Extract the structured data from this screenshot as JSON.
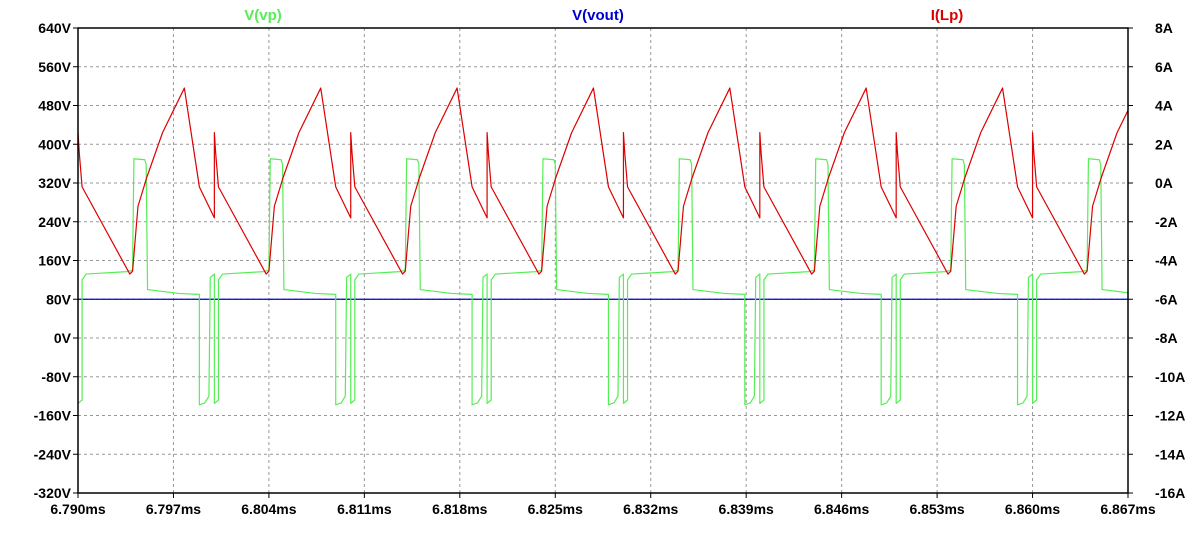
{
  "chart_data": {
    "type": "line",
    "title": "",
    "legend": [
      "V(vp)",
      "V(vout)",
      "I(Lp)"
    ],
    "x": {
      "unit": "ms",
      "range": [
        6.79,
        6.867
      ],
      "ticks": [
        6.79,
        6.797,
        6.804,
        6.811,
        6.818,
        6.825,
        6.832,
        6.839,
        6.846,
        6.853,
        6.86,
        6.867
      ],
      "tick_labels": [
        "6.790ms",
        "6.797ms",
        "6.804ms",
        "6.811ms",
        "6.818ms",
        "6.825ms",
        "6.832ms",
        "6.839ms",
        "6.846ms",
        "6.853ms",
        "6.860ms",
        "6.867ms"
      ]
    },
    "y_left": {
      "unit": "V",
      "range": [
        -320,
        640
      ],
      "ticks": [
        640,
        560,
        480,
        400,
        320,
        240,
        160,
        80,
        0,
        -80,
        -160,
        -240,
        -320
      ],
      "tick_labels": [
        "640V",
        "560V",
        "480V",
        "400V",
        "320V",
        "240V",
        "160V",
        "80V",
        "0V",
        "-80V",
        "-160V",
        "-240V",
        "-320V"
      ]
    },
    "y_right": {
      "unit": "A",
      "range": [
        -16,
        8
      ],
      "ticks": [
        8,
        6,
        4,
        2,
        0,
        -2,
        -4,
        -6,
        -8,
        -10,
        -12,
        -14,
        -16
      ],
      "tick_labels": [
        "8A",
        "6A",
        "4A",
        "2A",
        "0A",
        "-2A",
        "-4A",
        "-6A",
        "-8A",
        "-10A",
        "-12A",
        "-14A",
        "-16A"
      ]
    },
    "grid": true,
    "series": [
      {
        "name": "V(vp)",
        "axis": "left",
        "color": "#55ee55",
        "period": 0.01,
        "first_period": [
          [
            6.79,
            -135
          ],
          [
            6.7903,
            -128
          ],
          [
            6.7903,
            120
          ],
          [
            6.7906,
            132
          ],
          [
            6.7936,
            137
          ],
          [
            6.794,
            140
          ],
          [
            6.7941,
            370
          ],
          [
            6.7949,
            368
          ],
          [
            6.795,
            358
          ],
          [
            6.7951,
            100
          ],
          [
            6.7974,
            92
          ],
          [
            6.7989,
            90
          ],
          [
            6.7989,
            -138
          ],
          [
            6.7993,
            -134
          ],
          [
            6.7996,
            -120
          ],
          [
            6.7997,
            125
          ],
          [
            6.8,
            132
          ]
        ]
      },
      {
        "name": "V(vout)",
        "axis": "left",
        "color": "#0000cc",
        "points": [
          [
            6.79,
            80
          ],
          [
            6.867,
            80
          ]
        ]
      },
      {
        "name": "I(Lp)",
        "axis": "right",
        "color": "#dd0000",
        "period": 0.01,
        "first_period": [
          [
            6.79,
            2.6
          ],
          [
            6.7901,
            1.5
          ],
          [
            6.7903,
            -0.2
          ],
          [
            6.7938,
            -4.7
          ],
          [
            6.794,
            -4.55
          ],
          [
            6.7944,
            -1.2
          ],
          [
            6.7949,
            -0.05
          ],
          [
            6.795,
            0.2
          ],
          [
            6.7962,
            2.6
          ],
          [
            6.7978,
            4.9
          ],
          [
            6.7989,
            -0.2
          ],
          [
            6.8,
            -1.8
          ]
        ]
      }
    ]
  }
}
